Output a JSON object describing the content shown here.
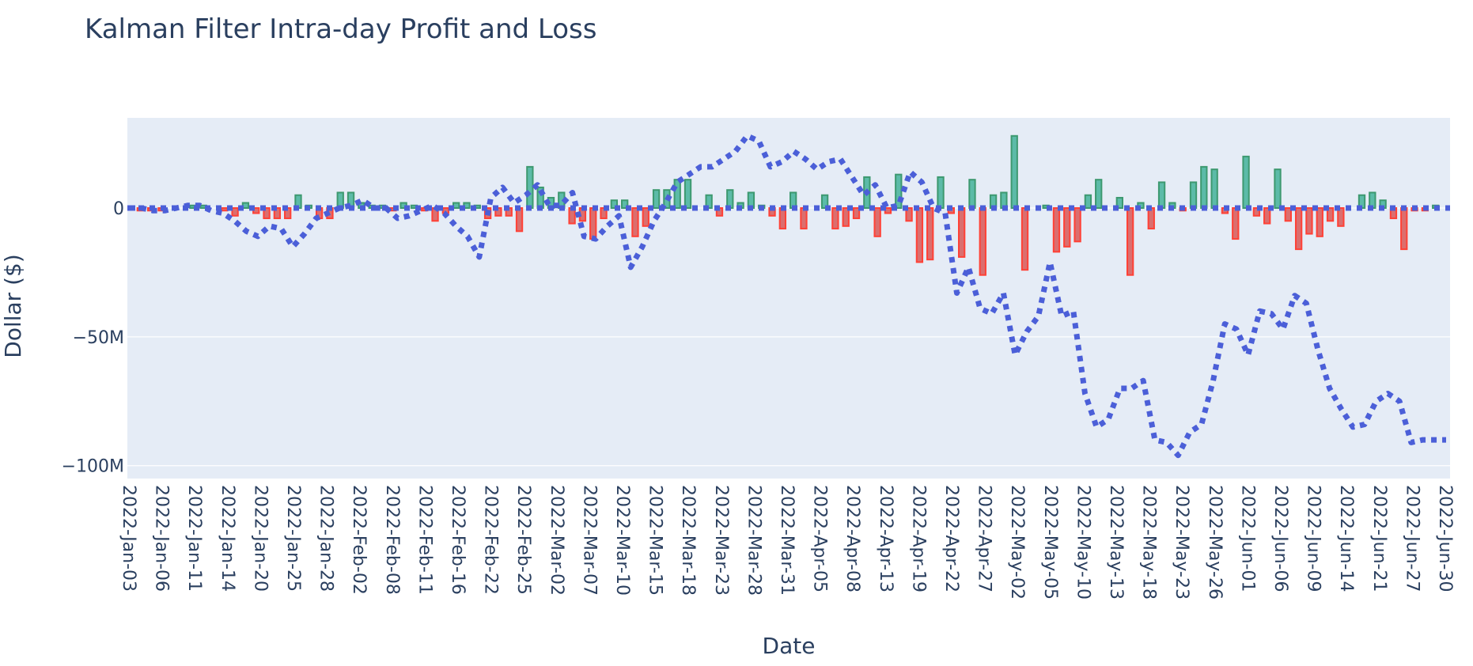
{
  "chart_data": {
    "type": "bar",
    "title": "Kalman Filter Intra-day Profit and Loss",
    "xlabel": "Date",
    "ylabel": "Dollar ($)",
    "ylim": [
      -105,
      35
    ],
    "y_ticks": [
      0,
      -50,
      -100
    ],
    "y_tick_labels": [
      "0",
      "−50M",
      "−100M"
    ],
    "x_tick_labels": [
      "2022-Jan-03",
      "2022-Jan-06",
      "2022-Jan-11",
      "2022-Jan-14",
      "2022-Jan-20",
      "2022-Jan-25",
      "2022-Jan-28",
      "2022-Feb-02",
      "2022-Feb-08",
      "2022-Feb-11",
      "2022-Feb-16",
      "2022-Feb-22",
      "2022-Feb-25",
      "2022-Mar-02",
      "2022-Mar-07",
      "2022-Mar-10",
      "2022-Mar-15",
      "2022-Mar-18",
      "2022-Mar-23",
      "2022-Mar-28",
      "2022-Mar-31",
      "2022-Apr-05",
      "2022-Apr-08",
      "2022-Apr-13",
      "2022-Apr-19",
      "2022-Apr-22",
      "2022-Apr-27",
      "2022-May-02",
      "2022-May-05",
      "2022-May-10",
      "2022-May-13",
      "2022-May-18",
      "2022-May-23",
      "2022-May-26",
      "2022-Jun-01",
      "2022-Jun-06",
      "2022-Jun-09",
      "2022-Jun-14",
      "2022-Jun-21",
      "2022-Jun-27",
      "2022-Jun-30"
    ],
    "value_unit": "M",
    "grid": true,
    "colors": {
      "increasing": "#3d9970",
      "decreasing": "#ff4136",
      "bar_fill_up": "#4db6a0",
      "bar_fill_down": "#d9605f",
      "line": "#4b5fd8",
      "plot_bg": "#e5ecf6",
      "grid": "#ffffff"
    },
    "series": [
      {
        "type": "bar",
        "values": [
          0,
          -1,
          -1,
          -1,
          0,
          0,
          1,
          1,
          0,
          -1,
          -3,
          2,
          -2,
          -4,
          -4,
          -4,
          5,
          1,
          -4,
          -4,
          6,
          6,
          2,
          1,
          1,
          -1,
          2,
          1,
          -1,
          -5,
          -2,
          2,
          2,
          1,
          -4,
          -3,
          -3,
          -9,
          16,
          8,
          4,
          6,
          -6,
          -5,
          -12,
          -4,
          3,
          3,
          -11,
          -7,
          7,
          7,
          11,
          11,
          0,
          5,
          -3,
          7,
          2,
          6,
          1,
          -3,
          -8,
          6,
          -8,
          0,
          5,
          -8,
          -7,
          -4,
          12,
          -11,
          -2,
          13,
          -5,
          -21,
          -20,
          12,
          -2,
          -19,
          11,
          -26,
          5,
          6,
          28,
          -24,
          0,
          1,
          -17,
          -15,
          -13,
          5,
          11,
          0,
          4,
          -26,
          2,
          -8,
          10,
          2,
          -1,
          10,
          16,
          15,
          -2,
          -12,
          20,
          -3,
          -6,
          15,
          -5,
          -16,
          -10,
          -11,
          -5,
          -7,
          0,
          5,
          6,
          3,
          -4,
          -16,
          -1,
          -1,
          1,
          0
        ],
        "labels": [
          "2022-Jan-03",
          "2022-Jan-06",
          "2022-Jan-11",
          "2022-Jan-14",
          "2022-Jan-20",
          "2022-Jan-25",
          "2022-Jan-28",
          "2022-Feb-02",
          "2022-Feb-08",
          "2022-Feb-11",
          "2022-Feb-16",
          "2022-Feb-22",
          "2022-Feb-25",
          "2022-Mar-02",
          "2022-Mar-07",
          "2022-Mar-10",
          "2022-Mar-15",
          "2022-Mar-18",
          "2022-Mar-23",
          "2022-Mar-28",
          "2022-Mar-31",
          "2022-Apr-05",
          "2022-Apr-08",
          "2022-Apr-13",
          "2022-Apr-19",
          "2022-Apr-22",
          "2022-Apr-27",
          "2022-May-02",
          "2022-May-05",
          "2022-May-10",
          "2022-May-13",
          "2022-May-18",
          "2022-May-23",
          "2022-May-26",
          "2022-Jun-01",
          "2022-Jun-06",
          "2022-Jun-09",
          "2022-Jun-14",
          "2022-Jun-21",
          "2022-Jun-27",
          "2022-Jun-30"
        ]
      },
      {
        "type": "line",
        "dash": "dot",
        "values": [
          0,
          0,
          -1,
          -1,
          0,
          1,
          1,
          -1,
          -2,
          -5,
          -9,
          -11,
          -7,
          -8,
          -15,
          -10,
          -4,
          -2,
          0,
          1,
          3,
          0,
          0,
          -4,
          -3,
          -1,
          1,
          -2,
          -7,
          -11,
          -19,
          4,
          8,
          2,
          5,
          9,
          1,
          1,
          6,
          -11,
          -12,
          -7,
          -3,
          -23,
          -15,
          -5,
          2,
          10,
          13,
          16,
          16,
          19,
          22,
          28,
          26,
          16,
          18,
          22,
          19,
          15,
          18,
          19,
          12,
          5,
          9,
          0,
          1,
          14,
          10,
          0,
          -2,
          -33,
          -23,
          -39,
          -41,
          -33,
          -57,
          -48,
          -42,
          -21,
          -42,
          -40,
          -72,
          -85,
          -82,
          -70,
          -70,
          -67,
          -90,
          -91,
          -96,
          -87,
          -84,
          -67,
          -45,
          -47,
          -57,
          -40,
          -41,
          -47,
          -34,
          -37,
          -55,
          -70,
          -78,
          -85,
          -84,
          -75,
          -72,
          -75,
          -91,
          -90,
          -90,
          -90
        ]
      }
    ]
  }
}
